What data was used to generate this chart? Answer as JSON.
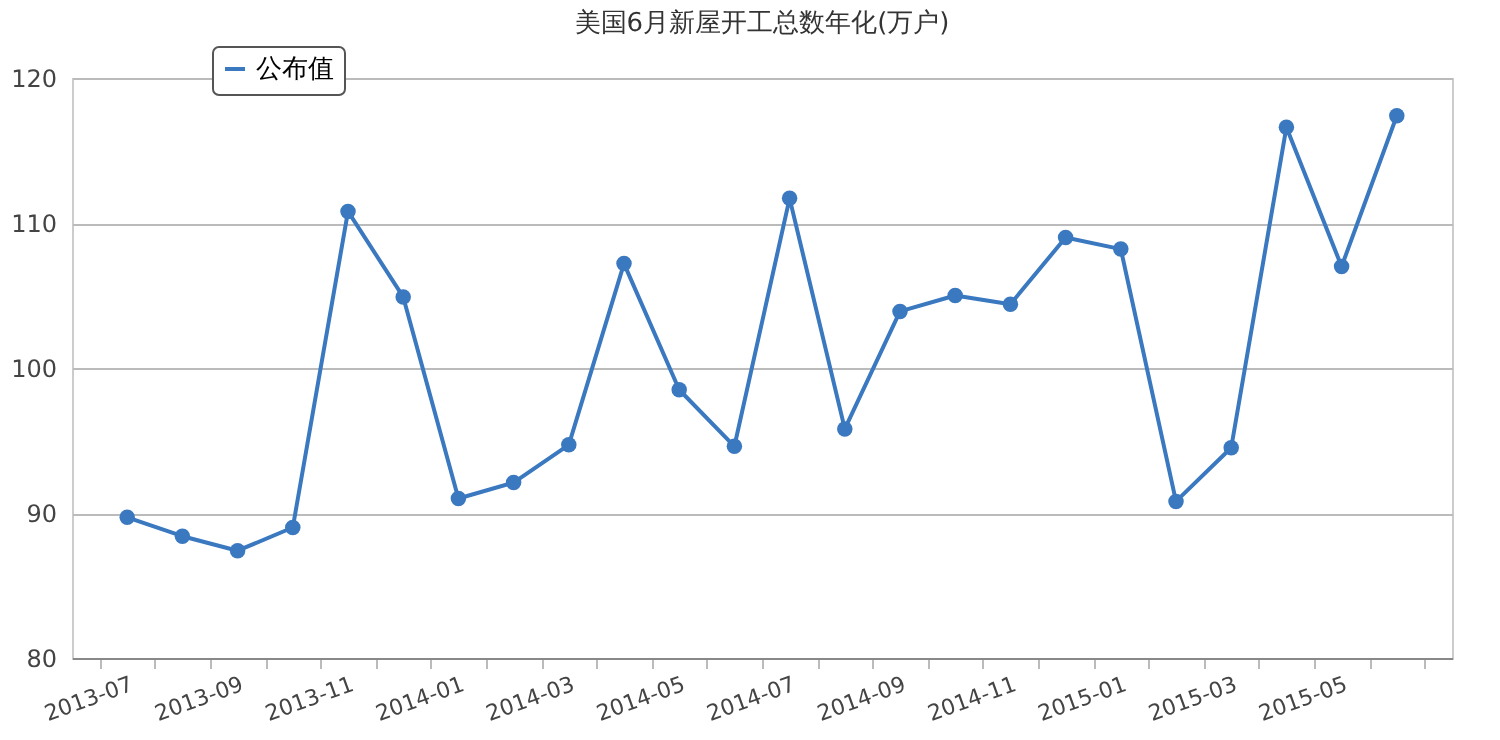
{
  "chart_data": {
    "type": "line",
    "title": "美国6月新屋开工总数年化(万户)",
    "categories": [
      "2013-07",
      null,
      "2013-09",
      null,
      "2013-11",
      null,
      "2014-01",
      null,
      "2014-03",
      null,
      "2014-05",
      null,
      "2014-07",
      null,
      "2014-09",
      null,
      "2014-11",
      null,
      "2015-01",
      null,
      "2015-03",
      null,
      "2015-05",
      null
    ],
    "series": [
      {
        "name": "公布值",
        "color": "#3a78c0",
        "values": [
          89.7,
          88.4,
          87.4,
          89.0,
          110.8,
          104.9,
          91.0,
          92.1,
          94.7,
          107.2,
          98.5,
          94.6,
          111.7,
          95.8,
          103.9,
          105.0,
          104.4,
          109.0,
          108.2,
          90.8,
          94.5,
          116.6,
          107.0,
          117.4
        ]
      }
    ],
    "ylim": [
      80,
      120
    ],
    "yticks": [
      80,
      90,
      100,
      110,
      120
    ],
    "grid": "y",
    "legend": "top left",
    "marker": "circle",
    "line_style": "solid"
  }
}
